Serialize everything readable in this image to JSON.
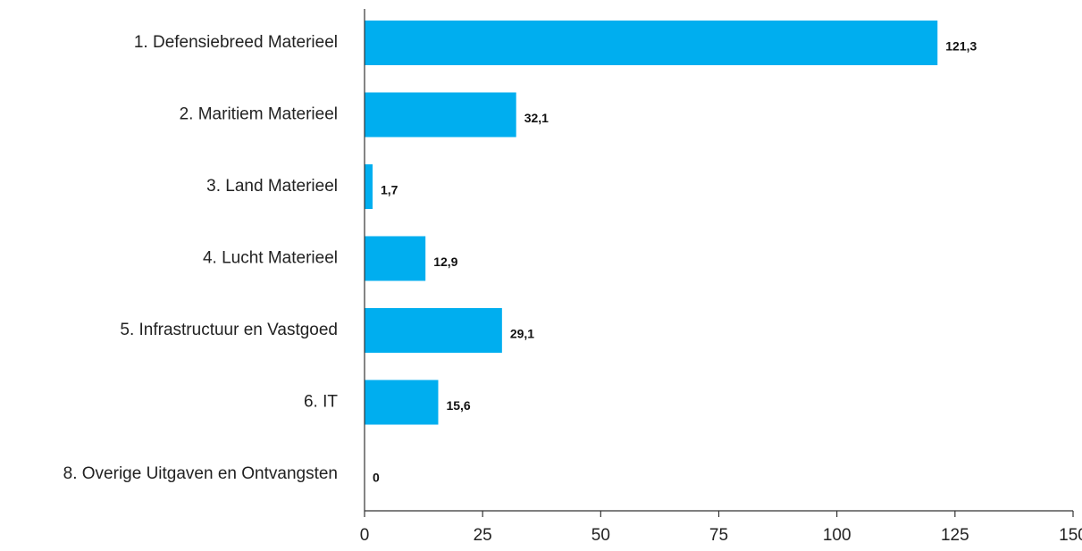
{
  "chart_data": {
    "type": "bar",
    "orientation": "horizontal",
    "title": "",
    "xlabel": "",
    "ylabel": "",
    "categories": [
      "1. Defensiebreed Materieel",
      "2. Maritiem Materieel",
      "3. Land Materieel",
      "4. Lucht Materieel",
      "5. Infrastructuur en Vastgoed",
      "6. IT",
      "8. Overige Uitgaven en Ontvangsten"
    ],
    "values": [
      121.3,
      32.1,
      1.7,
      12.9,
      29.1,
      15.6,
      0
    ],
    "value_labels": [
      "121,3",
      "32,1",
      "1,7",
      "12,9",
      "29,1",
      "15,6",
      "0"
    ],
    "xlim": [
      0,
      150
    ],
    "x_ticks": [
      0,
      25,
      50,
      75,
      100,
      125,
      150
    ],
    "x_tick_labels": [
      "0",
      "25",
      "50",
      "75",
      "100",
      "125",
      "150"
    ],
    "grid": false,
    "legend": "none",
    "bar_color": "#00aeef"
  }
}
